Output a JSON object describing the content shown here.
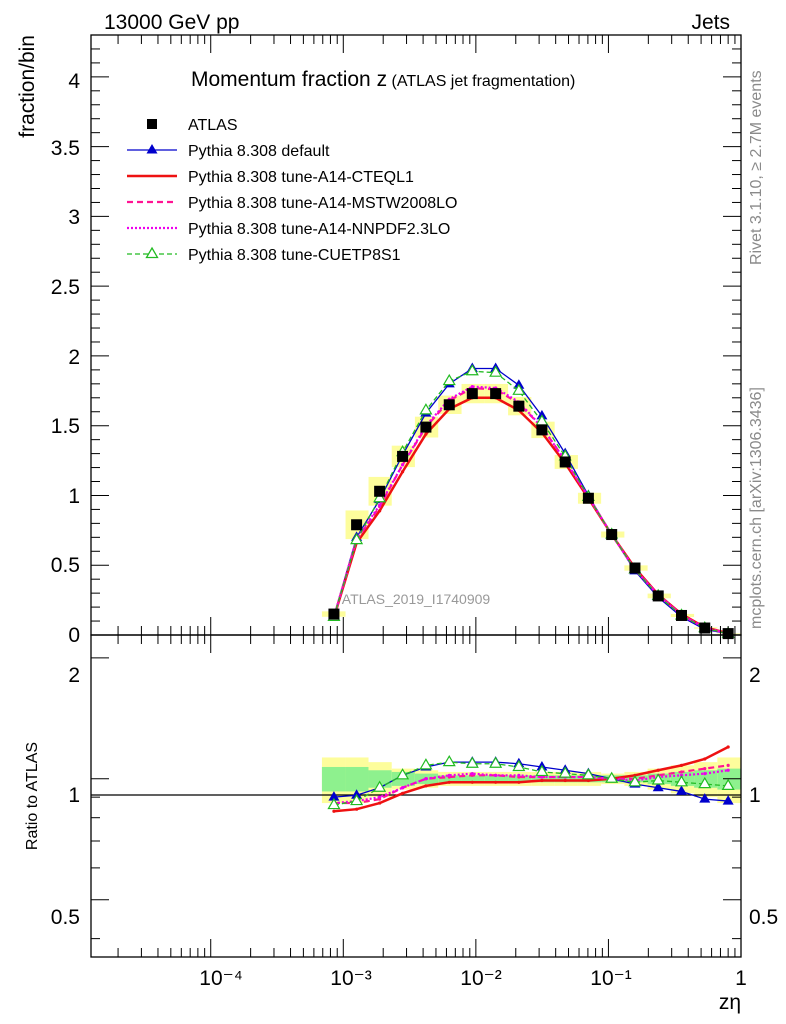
{
  "header": {
    "left": "13000 GeV pp",
    "right": "Jets"
  },
  "side_labels": {
    "rivet": "Rivet 3.1.10, ≥ 2.7M events",
    "mcplots": "mcplots.cern.ch [arXiv:1306.3436]"
  },
  "chart_data": {
    "type": "line",
    "title_main": "Momentum fraction z",
    "title_sub": "(ATLAS jet fragmentation)",
    "analysis_tag": "ATLAS_2019_I1740909",
    "xlabel": "zη",
    "ylabel_top": "fraction/bin",
    "ylabel_bottom": "Ratio to ATLAS",
    "x_scale": "log",
    "xlim": [
      1.25e-05,
      1.0
    ],
    "ylim_top": [
      0,
      4.3
    ],
    "ylim_bottom": [
      0.36,
      2.28
    ],
    "x_tick_labels": [
      "10⁻⁴",
      "10⁻³",
      "10⁻²",
      "10⁻¹",
      "1"
    ],
    "y_tick_labels_top": [
      "0",
      "0.5",
      "1",
      "1.5",
      "2",
      "2.5",
      "3",
      "3.5",
      "4"
    ],
    "y_tick_labels_bottom": [
      "0.5",
      "1",
      "2"
    ],
    "legend_position": "top-left",
    "x": [
      0.00085,
      0.00126,
      0.00188,
      0.0028,
      0.0042,
      0.0063,
      0.0094,
      0.0141,
      0.0211,
      0.0315,
      0.0472,
      0.0706,
      0.1058,
      0.1585,
      0.2374,
      0.3557,
      0.533,
      0.8
    ],
    "band_edges": [
      0.00069,
      0.00104,
      0.00155,
      0.00232,
      0.00347,
      0.0052,
      0.0078,
      0.0117,
      0.0175,
      0.0262,
      0.0393,
      0.0589,
      0.0881,
      0.1319,
      0.1975,
      0.2957,
      0.4428,
      0.663,
      0.993
    ],
    "band_inner": [
      0.07,
      0.07,
      0.05,
      0.04,
      0.03,
      0.02,
      0.02,
      0.02,
      0.02,
      0.02,
      0.02,
      0.02,
      0.02,
      0.02,
      0.03,
      0.04,
      0.05,
      0.06
    ],
    "band_outer": [
      0.13,
      0.13,
      0.1,
      0.06,
      0.05,
      0.04,
      0.04,
      0.04,
      0.04,
      0.04,
      0.04,
      0.04,
      0.03,
      0.04,
      0.06,
      0.08,
      0.1,
      0.13
    ],
    "series": [
      {
        "name": "ATLAS",
        "color": "#000000",
        "dash": "",
        "marker": "square",
        "values": [
          0.15,
          0.79,
          1.03,
          1.28,
          1.49,
          1.65,
          1.73,
          1.73,
          1.64,
          1.47,
          1.24,
          0.98,
          0.72,
          0.48,
          0.28,
          0.14,
          0.05,
          0.01
        ]
      },
      {
        "name": "Pythia 8.308 default",
        "color": "#0000cc",
        "dash": "",
        "marker": "triangle",
        "values": [
          0.135,
          0.7,
          0.97,
          1.29,
          1.59,
          1.8,
          1.91,
          1.91,
          1.79,
          1.57,
          1.3,
          1.0,
          0.72,
          0.46,
          0.27,
          0.13,
          0.04,
          0.009
        ]
      },
      {
        "name": "Pythia 8.308 tune-A14-CTEQL1",
        "color": "#ee1111",
        "dash": "",
        "marker": "none",
        "values": [
          0.125,
          0.66,
          0.89,
          1.17,
          1.44,
          1.62,
          1.7,
          1.7,
          1.61,
          1.45,
          1.23,
          0.98,
          0.72,
          0.48,
          0.29,
          0.15,
          0.055,
          0.013
        ]
      },
      {
        "name": "Pythia 8.308 tune-A14-MSTW2008LO",
        "color": "#ff1493",
        "dash": "6,4",
        "marker": "none",
        "values": [
          0.13,
          0.68,
          0.92,
          1.22,
          1.49,
          1.68,
          1.77,
          1.76,
          1.66,
          1.49,
          1.25,
          0.99,
          0.72,
          0.47,
          0.29,
          0.145,
          0.052,
          0.012
        ]
      },
      {
        "name": "Pythia 8.308 tune-A14-NNPDF2.3LO",
        "color": "#ee00ee",
        "dash": "2,2",
        "marker": "none",
        "values": [
          0.13,
          0.69,
          0.93,
          1.22,
          1.5,
          1.69,
          1.78,
          1.77,
          1.67,
          1.49,
          1.25,
          0.99,
          0.72,
          0.47,
          0.285,
          0.142,
          0.051,
          0.011
        ]
      },
      {
        "name": "Pythia 8.308 tune-CUETP8S1",
        "color": "#22bb22",
        "dash": "5,3",
        "marker": "triangle-open",
        "values": [
          0.13,
          0.68,
          0.98,
          1.31,
          1.61,
          1.82,
          1.89,
          1.88,
          1.75,
          1.53,
          1.28,
          0.99,
          0.72,
          0.47,
          0.28,
          0.14,
          0.049,
          0.0098
        ]
      }
    ],
    "ratios": [
      [
        0.9,
        0.91,
        0.95,
        1.02,
        1.07,
        1.1,
        1.1,
        1.1,
        1.09,
        1.07,
        1.05,
        1.03,
        1.0,
        0.97,
        0.95,
        0.93,
        0.89,
        0.88
      ],
      [
        0.83,
        0.84,
        0.87,
        0.92,
        0.96,
        0.98,
        0.98,
        0.98,
        0.98,
        0.99,
        0.99,
        0.99,
        1.0,
        1.02,
        1.05,
        1.08,
        1.12,
        1.2
      ],
      [
        0.87,
        0.87,
        0.89,
        0.95,
        1.0,
        1.01,
        1.02,
        1.02,
        1.01,
        1.01,
        1.01,
        1.01,
        1.0,
        1.0,
        1.02,
        1.04,
        1.06,
        1.08
      ],
      [
        0.87,
        0.88,
        0.9,
        0.95,
        1.0,
        1.02,
        1.03,
        1.02,
        1.02,
        1.01,
        1.01,
        1.01,
        1.0,
        0.99,
        1.01,
        1.02,
        1.03,
        1.05
      ],
      [
        0.86,
        0.88,
        0.95,
        1.02,
        1.08,
        1.1,
        1.09,
        1.09,
        1.07,
        1.04,
        1.03,
        1.02,
        1.0,
        0.98,
        0.99,
        0.98,
        0.97,
        0.96
      ]
    ]
  }
}
